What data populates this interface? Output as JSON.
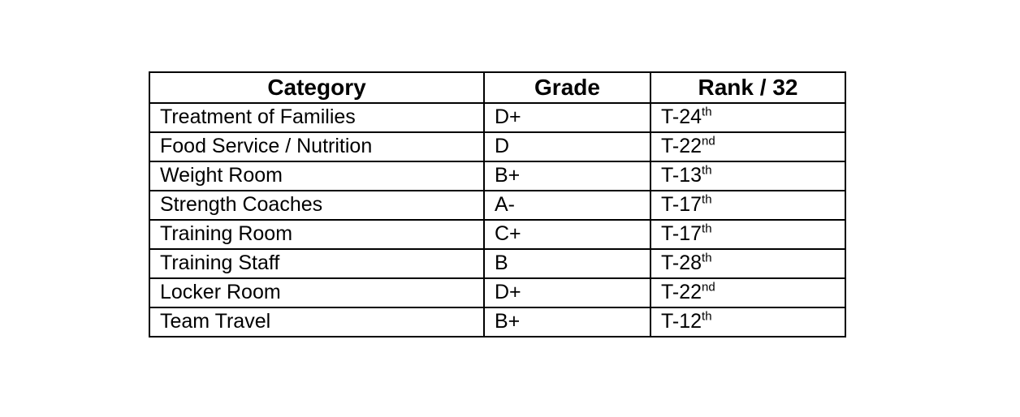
{
  "page": {
    "background": "#ffffff"
  },
  "table": {
    "headers": {
      "category": "Category",
      "grade": "Grade",
      "rank": "Rank / 32"
    },
    "rows": [
      {
        "category": "Treatment of Families",
        "grade": "D+",
        "rank_base": "T-24",
        "rank_suffix": "th"
      },
      {
        "category": "Food Service / Nutrition",
        "grade": "D",
        "rank_base": "T-22",
        "rank_suffix": "nd"
      },
      {
        "category": "Weight Room",
        "grade": "B+",
        "rank_base": "T-13",
        "rank_suffix": "th"
      },
      {
        "category": "Strength Coaches",
        "grade": "A-",
        "rank_base": "T-17",
        "rank_suffix": "th"
      },
      {
        "category": "Training Room",
        "grade": "C+",
        "rank_base": "T-17",
        "rank_suffix": "th"
      },
      {
        "category": "Training Staff",
        "grade": "B",
        "rank_base": "T-28",
        "rank_suffix": "th"
      },
      {
        "category": "Locker Room",
        "grade": "D+",
        "rank_base": "T-22",
        "rank_suffix": "nd"
      },
      {
        "category": "Team Travel",
        "grade": "B+",
        "rank_base": "T-12",
        "rank_suffix": "th"
      }
    ],
    "colors": {
      "border": "#000000",
      "text": "#000000",
      "cell_background": "#ffffff"
    }
  },
  "chart_data": {
    "type": "table",
    "title": "",
    "columns": [
      "Category",
      "Grade",
      "Rank / 32"
    ],
    "rows": [
      [
        "Treatment of Families",
        "D+",
        "T-24th"
      ],
      [
        "Food Service / Nutrition",
        "D",
        "T-22nd"
      ],
      [
        "Weight Room",
        "B+",
        "T-13th"
      ],
      [
        "Strength Coaches",
        "A-",
        "T-17th"
      ],
      [
        "Training Room",
        "C+",
        "T-17th"
      ],
      [
        "Training Staff",
        "B",
        "T-28th"
      ],
      [
        "Locker Room",
        "D+",
        "T-22nd"
      ],
      [
        "Team Travel",
        "B+",
        "T-12th"
      ]
    ],
    "layout": {
      "grid": true,
      "header_bold": true,
      "header_align": "center",
      "cell_align": "left",
      "rank_ordinal_superscript": true
    }
  }
}
